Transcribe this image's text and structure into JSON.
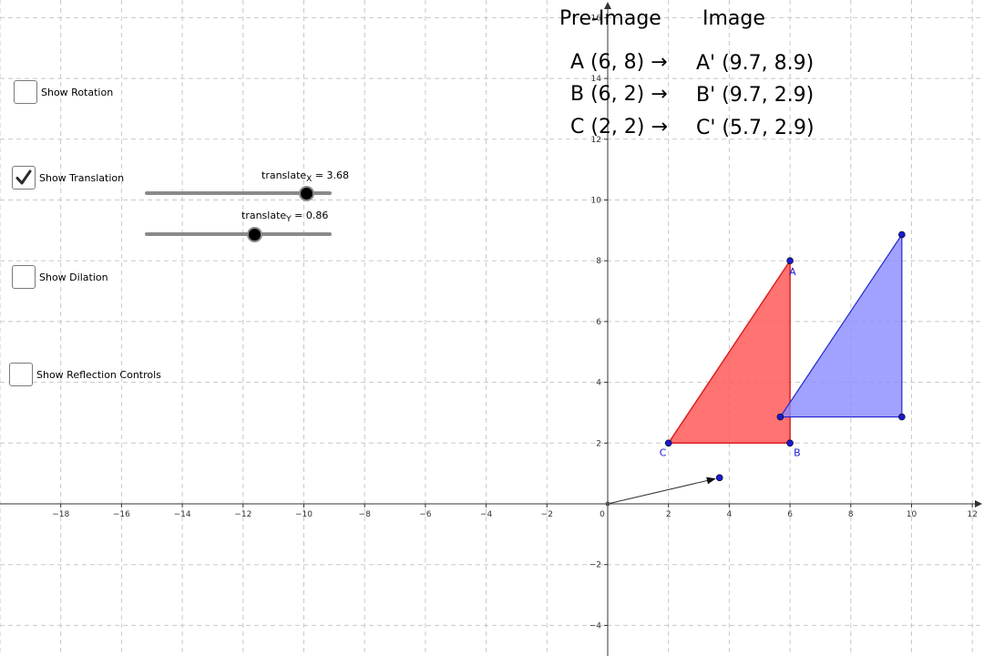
{
  "controls": {
    "rotation": {
      "label": "Show Rotation",
      "checked": false
    },
    "translation": {
      "label": "Show Translation",
      "checked": true
    },
    "dilation": {
      "label": "Show Dilation",
      "checked": false
    },
    "reflection": {
      "label": "Show Reflection Controls",
      "checked": false
    }
  },
  "sliders": {
    "translate_x": {
      "name": "translate",
      "subscript": "X",
      "value_text": " = 3.68",
      "value": 3.68,
      "min": -5,
      "max": 5
    },
    "translate_y": {
      "name": "translate",
      "subscript": "Y",
      "value_text": " = 0.86",
      "value": 0.86,
      "min": -5,
      "max": 5
    }
  },
  "mapping_table": {
    "preimage_header": "Pre-Image",
    "image_header": "Image",
    "rows": [
      {
        "pre": "A (6, 8) →",
        "img": "A' (9.7, 8.9)"
      },
      {
        "pre": "B (6, 2) →",
        "img": "B' (9.7, 2.9)"
      },
      {
        "pre": "C (2, 2) →",
        "img": "C' (5.7, 2.9)"
      }
    ]
  },
  "graph": {
    "x_ticks": [
      "−18",
      "−16",
      "−14",
      "−12",
      "−10",
      "−8",
      "−6",
      "−4",
      "−2",
      "0",
      "2",
      "4",
      "6",
      "8",
      "10",
      "12"
    ],
    "x_tick_values": [
      -18,
      -16,
      -14,
      -12,
      -10,
      -8,
      -6,
      -4,
      -2,
      0,
      2,
      4,
      6,
      8,
      10,
      12
    ],
    "y_ticks": [
      "−4",
      "−2",
      "2",
      "4",
      "6",
      "8",
      "10",
      "12",
      "14",
      "16"
    ],
    "y_tick_values": [
      -4,
      -2,
      2,
      4,
      6,
      8,
      10,
      12,
      14,
      16
    ],
    "preimage": {
      "points": [
        {
          "label": "A",
          "x": 6,
          "y": 8
        },
        {
          "label": "B",
          "x": 6,
          "y": 2
        },
        {
          "label": "C",
          "x": 2,
          "y": 2
        }
      ],
      "fill": "#ff5a5a",
      "stroke": "#e02020"
    },
    "image": {
      "points": [
        {
          "x": 9.68,
          "y": 8.86
        },
        {
          "x": 9.68,
          "y": 2.86
        },
        {
          "x": 5.68,
          "y": 2.86
        }
      ],
      "fill": "#8a8aff",
      "stroke": "#2a2ad0"
    },
    "vector": {
      "x": 3.68,
      "y": 0.86
    },
    "point_color": "#1a1ad0"
  }
}
